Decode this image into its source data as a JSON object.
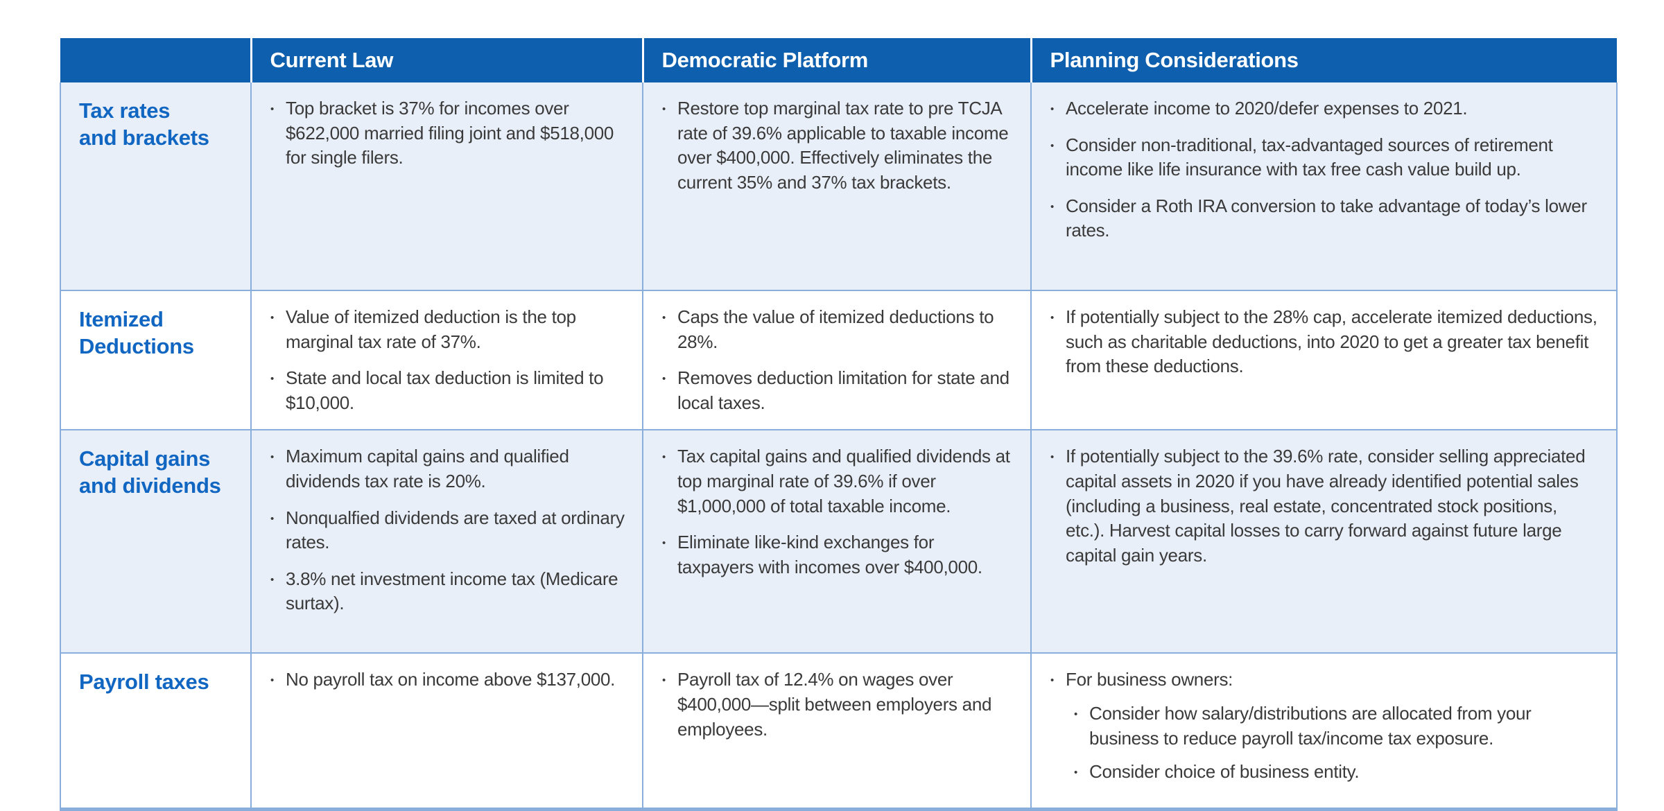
{
  "colors": {
    "header_bg": "#0e5fad",
    "header_text": "#ffffff",
    "topic_text": "#1166c2",
    "body_text": "#3a3a3a",
    "stripe_bg": "#e9eff9",
    "divider": "#8aaedc",
    "page_bg": "#ffffff"
  },
  "table": {
    "header": [
      "",
      "Current Law",
      "Democratic Platform",
      "Planning Considerations"
    ],
    "rows": [
      {
        "topic_lines": [
          "Tax rates",
          "and brackets"
        ],
        "current_law": [
          {
            "text": "Top bracket is 37% for incomes over $622,000 married filing joint and $518,000 for single filers."
          }
        ],
        "democratic_platform": [
          {
            "text": "Restore top marginal tax rate to pre TCJA rate of 39.6% applicable to taxable income over $400,000. Effectively eliminates the current 35% and 37% tax brackets."
          }
        ],
        "planning_considerations": [
          {
            "text": "Accelerate income to 2020/defer expenses to 2021."
          },
          {
            "text": "Consider non-traditional, tax-advantaged sources of retirement income like life insurance with tax free cash value build up."
          },
          {
            "text": "Consider a Roth IRA conversion to take advantage of today’s lower rates."
          }
        ]
      },
      {
        "topic_lines": [
          "Itemized",
          "Deductions"
        ],
        "current_law": [
          {
            "text": "Value of itemized deduction is the top marginal tax rate of 37%."
          },
          {
            "text": "State and local tax deduction is limited to $10,000."
          }
        ],
        "democratic_platform": [
          {
            "text": "Caps the value of itemized deductions to 28%."
          },
          {
            "text": "Removes deduction limitation for state and local taxes."
          }
        ],
        "planning_considerations": [
          {
            "text": "If potentially subject to the 28% cap, accelerate itemized deductions, such as charitable deductions, into 2020 to get a greater tax benefit from these deductions."
          }
        ]
      },
      {
        "topic_lines": [
          "Capital gains",
          "and dividends"
        ],
        "current_law": [
          {
            "text": "Maximum capital gains and qualified dividends tax rate is 20%."
          },
          {
            "text": "Nonqualfied dividends are taxed at ordinary rates."
          },
          {
            "text": "3.8% net investment income tax (Medicare surtax)."
          }
        ],
        "democratic_platform": [
          {
            "text": "Tax capital gains and qualified dividends at top marginal rate of 39.6% if over $1,000,000 of total taxable income."
          },
          {
            "text": "Eliminate like-kind exchanges for taxpayers with incomes over $400,000."
          }
        ],
        "planning_considerations": [
          {
            "text": "If potentially subject to the 39.6% rate, consider selling appreciated capital assets in 2020 if you have already identified potential sales (including a business, real estate, concentrated stock positions, etc.). Harvest capital losses to carry forward against future large capital gain years."
          }
        ]
      },
      {
        "topic_lines": [
          "Payroll taxes"
        ],
        "current_law": [
          {
            "text": "No payroll tax on income above $137,000."
          }
        ],
        "democratic_platform": [
          {
            "text": "Payroll tax of 12.4% on wages over $400,000—split between employers and employees."
          }
        ],
        "planning_considerations": [
          {
            "text": "For business owners:",
            "children": [
              {
                "text": "Consider how salary/distributions are allocated from your business to reduce payroll tax/income tax exposure."
              },
              {
                "text": "Consider choice of business entity."
              }
            ]
          }
        ]
      }
    ]
  }
}
